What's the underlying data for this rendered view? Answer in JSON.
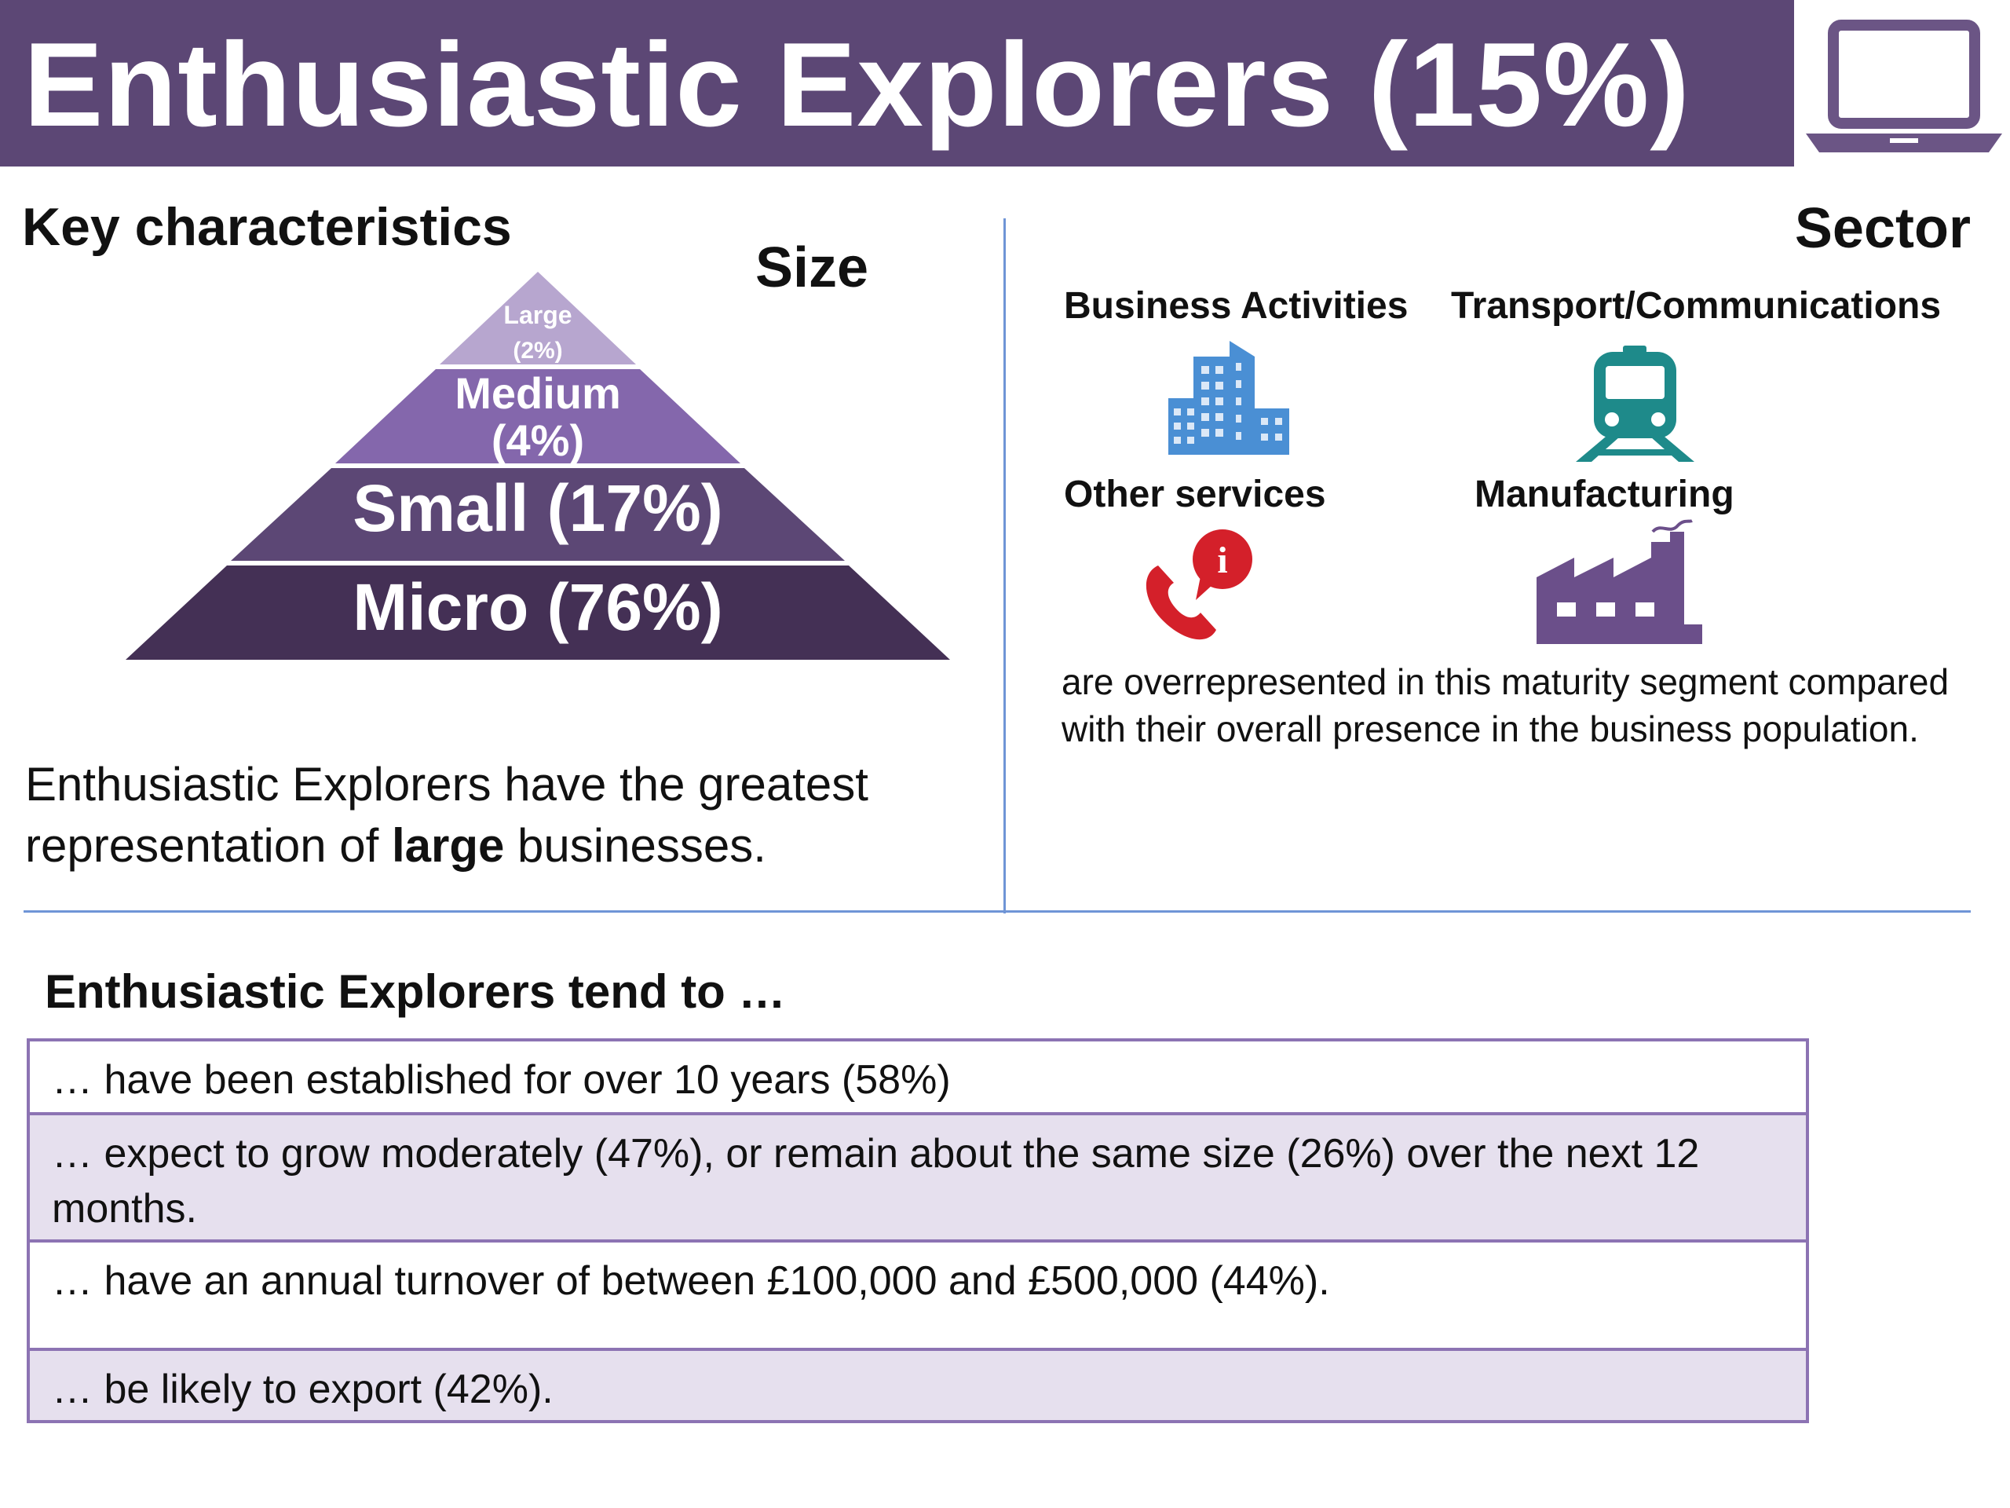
{
  "header": {
    "title": "Enthusiastic Explorers (15%)",
    "icon": "laptop-icon",
    "band_color": "#5c4775"
  },
  "key_characteristics": {
    "title": "Key characteristics"
  },
  "size": {
    "title": "Size",
    "pyramid": [
      {
        "label": "Large",
        "pct": "(2%)",
        "color": "#b7a6cf"
      },
      {
        "label": "Medium",
        "pct": "(4%)",
        "color": "#8467ac"
      },
      {
        "label": "Small (17%)",
        "color": "#5c4775"
      },
      {
        "label": "Micro (76%)",
        "color": "#443055"
      }
    ],
    "note_pre": "Enthusiastic Explorers have the greatest representation of ",
    "note_bold": "large",
    "note_post": " businesses."
  },
  "sector": {
    "title": "Sector",
    "items": [
      {
        "label": "Business Activities",
        "icon": "office-buildings-icon",
        "color": "#4a8fd4"
      },
      {
        "label": "Transport/Communications",
        "icon": "train-icon",
        "color": "#1e8a8a"
      },
      {
        "label": "Other services",
        "icon": "phone-info-icon",
        "color": "#d4202a"
      },
      {
        "label": "Manufacturing",
        "icon": "factory-icon",
        "color": "#6b4f8a"
      }
    ],
    "note": "are overrepresented in this maturity segment compared with their overall presence in the business population."
  },
  "tendencies": {
    "title": "Enthusiastic Explorers tend to …",
    "rows": [
      "… have been established for over 10 years (58%)",
      "… expect to grow moderately (47%), or remain about the same size (26%) over the next 12 months.",
      "… have an annual turnover of between £100,000 and £500,000 (44%).",
      "… be likely to export (42%)."
    ]
  },
  "colors": {
    "divider": "#6f95d6",
    "table_border": "#8c73b3",
    "row_alt": "#e6e0ee"
  }
}
